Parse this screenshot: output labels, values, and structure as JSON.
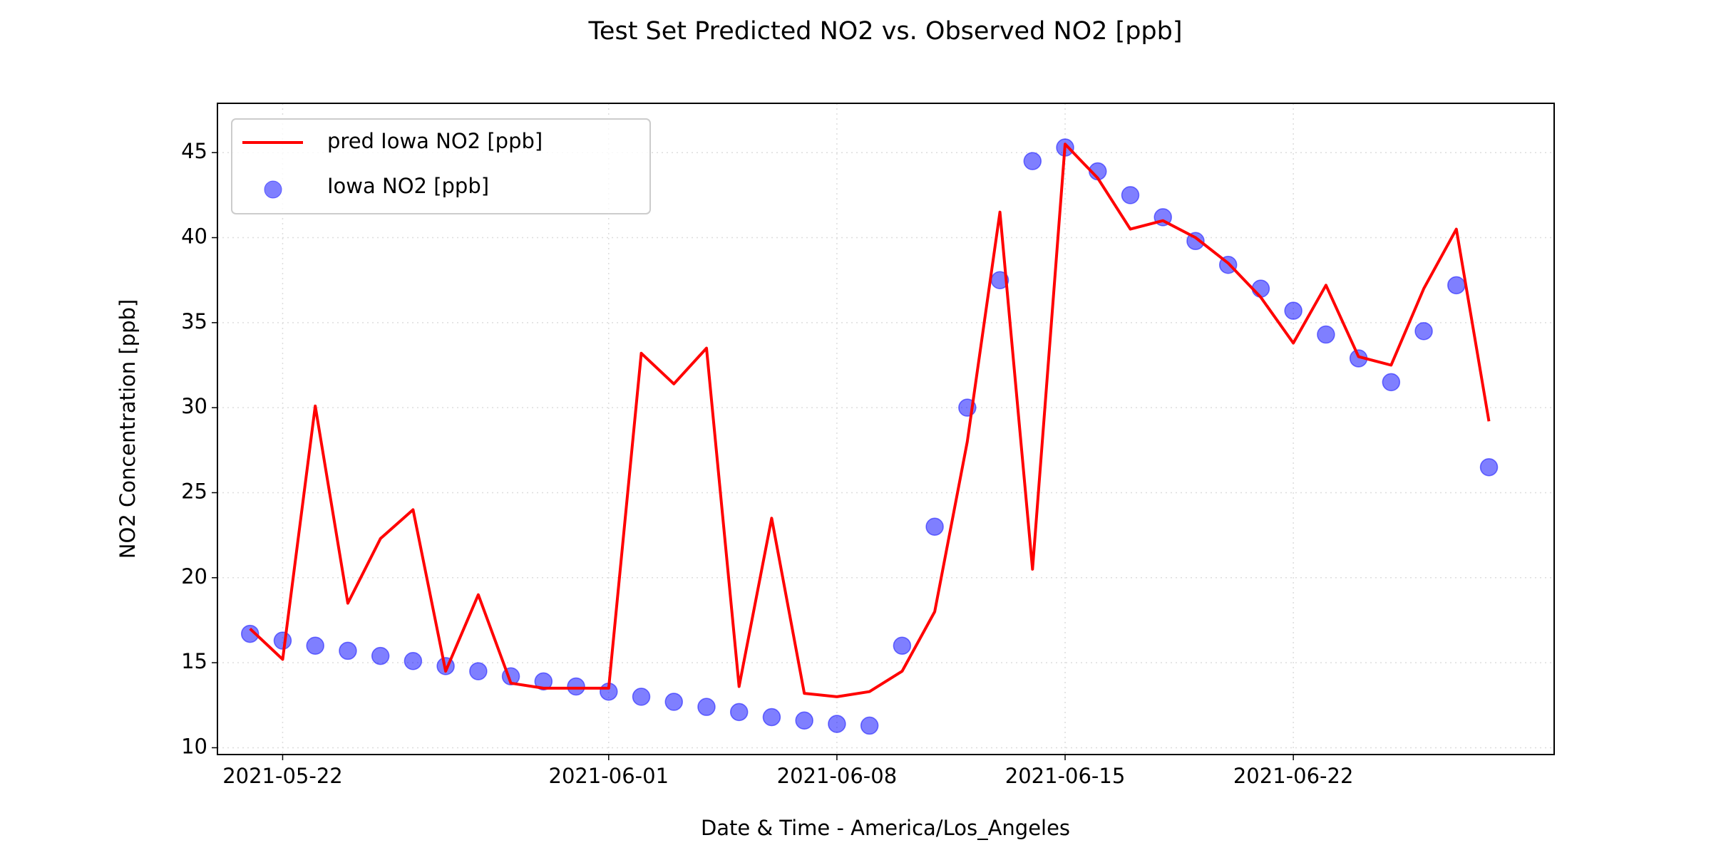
{
  "chart_data": {
    "type": "line",
    "title": "Test Set Predicted NO2 vs. Observed NO2 [ppb]",
    "x_label": "Date & Time - America/Los_Angeles",
    "y_label": "NO2 Concentration [ppb]",
    "x": [
      "2021-05-21",
      "2021-05-22",
      "2021-05-23",
      "2021-05-24",
      "2021-05-25",
      "2021-05-26",
      "2021-05-27",
      "2021-05-28",
      "2021-05-29",
      "2021-05-30",
      "2021-05-31",
      "2021-06-01",
      "2021-06-02",
      "2021-06-03",
      "2021-06-04",
      "2021-06-05",
      "2021-06-06",
      "2021-06-07",
      "2021-06-08",
      "2021-06-09",
      "2021-06-10",
      "2021-06-11",
      "2021-06-12",
      "2021-06-13",
      "2021-06-14",
      "2021-06-15",
      "2021-06-16",
      "2021-06-17",
      "2021-06-18",
      "2021-06-19",
      "2021-06-20",
      "2021-06-21",
      "2021-06-22",
      "2021-06-23",
      "2021-06-24",
      "2021-06-25",
      "2021-06-26",
      "2021-06-27",
      "2021-06-28"
    ],
    "series": [
      {
        "name": "pred Iowa NO2 [ppb]",
        "type": "line",
        "color": "#ff0000",
        "values": [
          17.0,
          15.2,
          30.1,
          18.5,
          22.3,
          24.0,
          14.5,
          19.0,
          13.8,
          13.5,
          13.5,
          13.5,
          33.2,
          31.4,
          33.5,
          13.6,
          23.5,
          13.2,
          13.0,
          13.3,
          14.5,
          18.0,
          28.0,
          41.5,
          20.5,
          45.5,
          43.5,
          40.5,
          41.0,
          40.0,
          38.5,
          36.5,
          33.8,
          37.2,
          33.0,
          32.5,
          37.0,
          40.5,
          29.2
        ]
      },
      {
        "name": "Iowa NO2 [ppb]",
        "type": "scatter",
        "color": "#0000ff",
        "values": [
          16.7,
          16.3,
          16.0,
          15.7,
          15.4,
          15.1,
          14.8,
          14.5,
          14.2,
          13.9,
          13.6,
          13.3,
          13.0,
          12.7,
          12.4,
          12.1,
          11.8,
          11.6,
          11.4,
          11.3,
          16.0,
          23.0,
          30.0,
          37.5,
          44.5,
          45.3,
          43.9,
          42.5,
          41.2,
          39.8,
          38.4,
          37.0,
          35.7,
          34.3,
          32.9,
          31.5,
          34.5,
          37.2,
          26.5
        ]
      }
    ],
    "xlim": [
      "2021-05-20",
      "2021-06-30"
    ],
    "xticks": [
      "2021-05-22",
      "2021-06-01",
      "2021-06-08",
      "2021-06-15",
      "2021-06-22"
    ],
    "ylim": [
      9.6,
      47.9
    ],
    "yticks": [
      10,
      15,
      20,
      25,
      30,
      35,
      40,
      45
    ],
    "grid": true,
    "legend": "upper left"
  }
}
